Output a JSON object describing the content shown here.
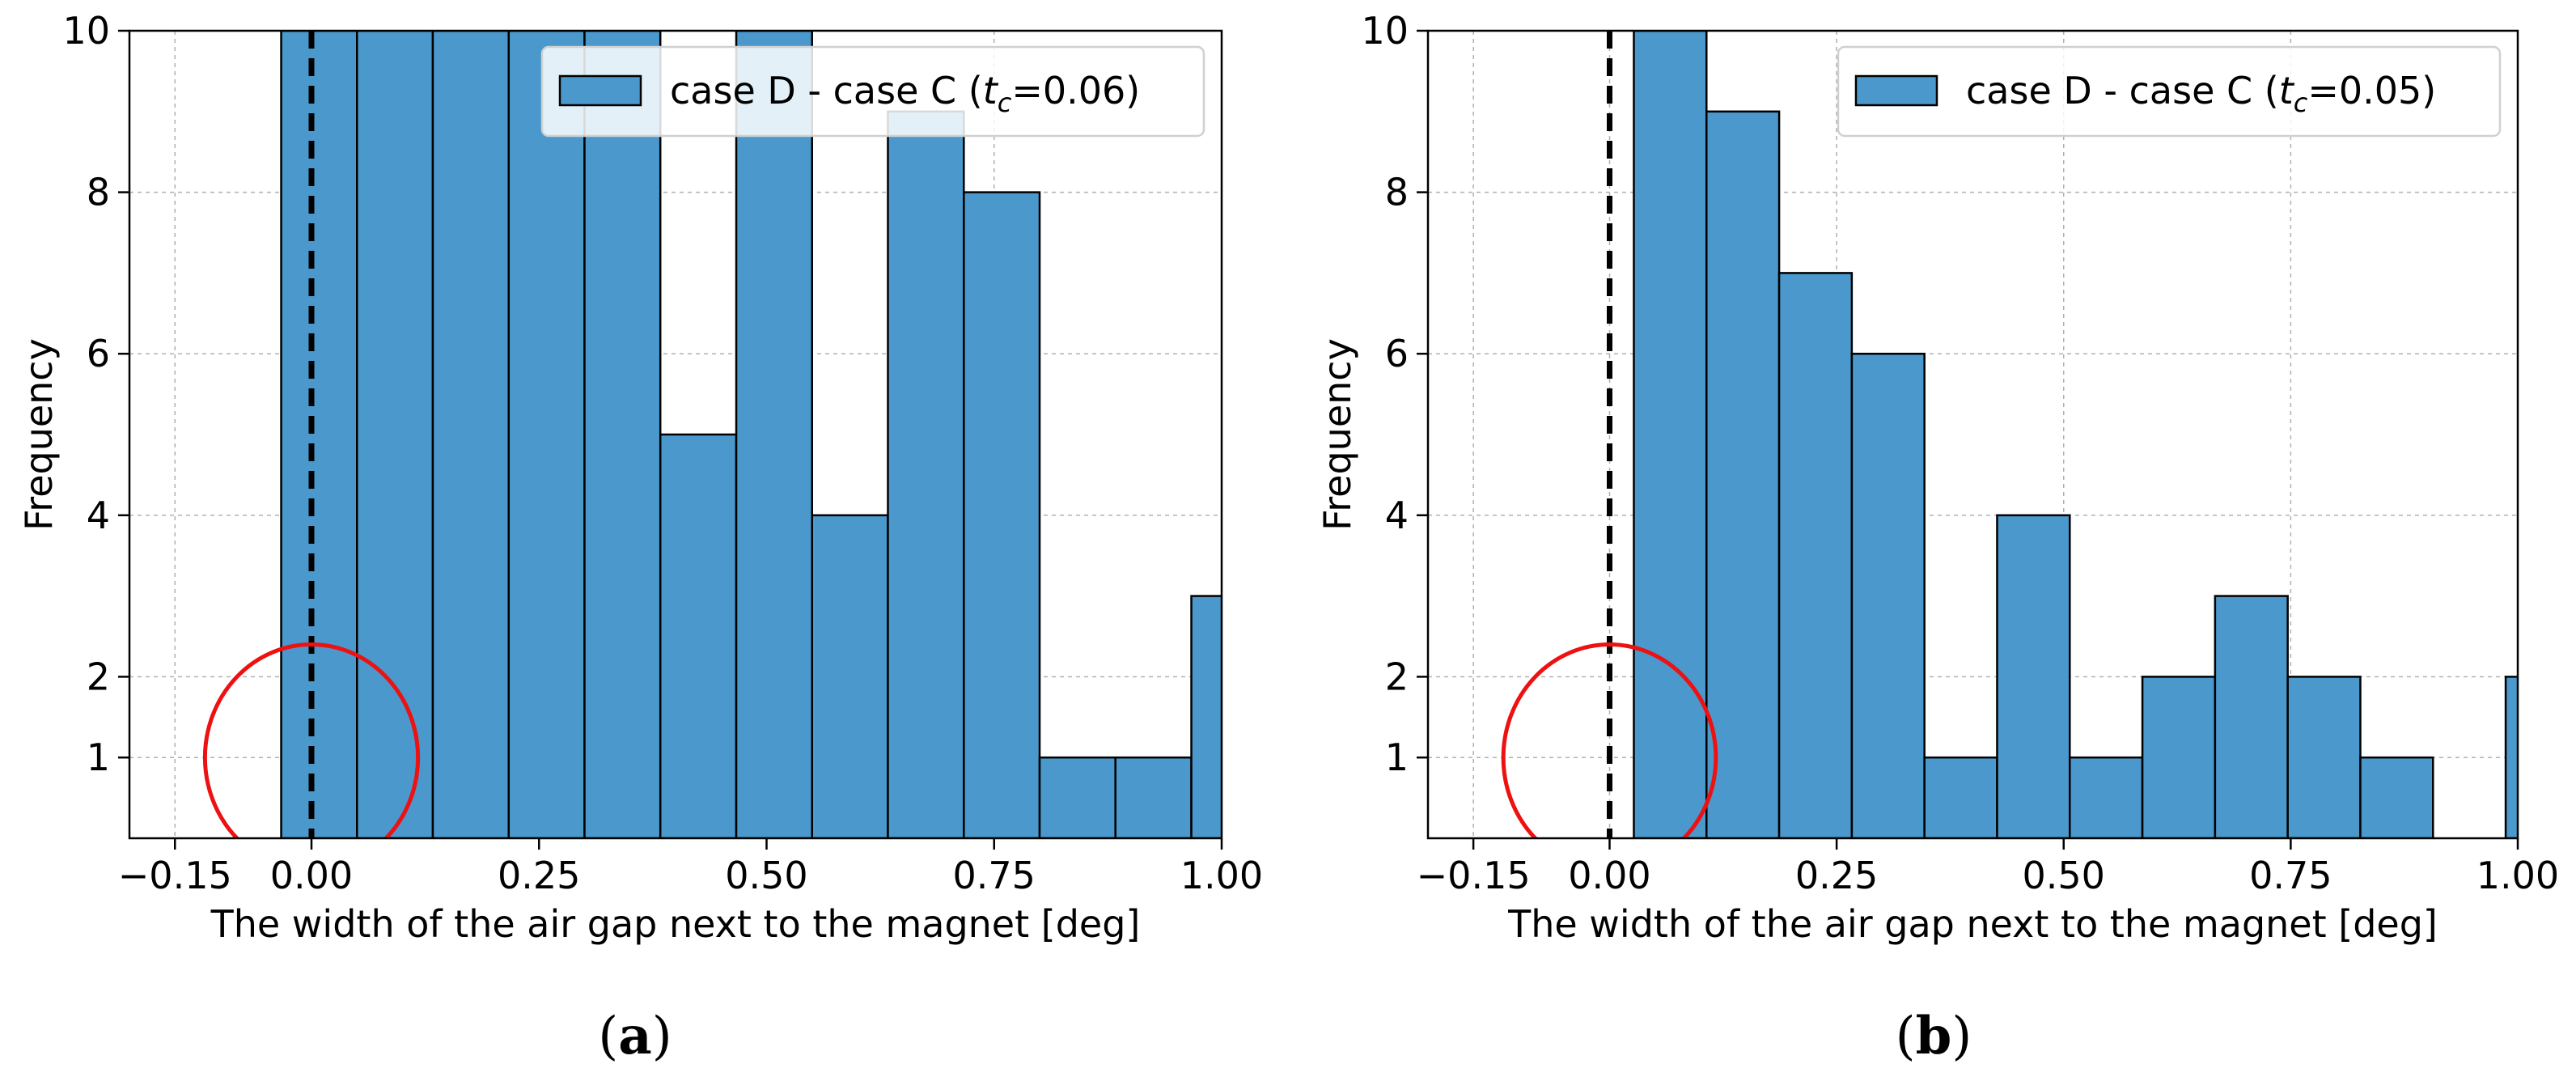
{
  "colors": {
    "bar": "#4a98cc",
    "marker": "#000000",
    "circle": "#ee1111"
  },
  "chart_data": [
    {
      "type": "bar",
      "panel_label": {
        "open": "(",
        "letter": "a",
        "close": ")"
      },
      "xlabel": "The width of the air gap next to the magnet [deg]",
      "ylabel": "Frequency",
      "xlim": [
        -0.2,
        1.0
      ],
      "ylim": [
        0,
        10
      ],
      "grid": true,
      "legend_position": "top-right",
      "legend": {
        "prefix": "case D - case C (",
        "var": "t",
        "sub": "c",
        "suffix": "=0.06)"
      },
      "xticks": [
        -0.15,
        0.0,
        0.25,
        0.5,
        0.75,
        1.0
      ],
      "xtick_labels": [
        "−0.15",
        "0.00",
        "0.25",
        "0.50",
        "0.75",
        "1.00"
      ],
      "yticks": [
        1,
        2,
        4,
        6,
        8,
        10
      ],
      "ytick_labels": [
        "1",
        "2",
        "4",
        "6",
        "8",
        "10"
      ],
      "bin_edges": [
        -0.0333,
        0.05,
        0.1333,
        0.2167,
        0.3,
        0.3833,
        0.4667,
        0.55,
        0.6333,
        0.7167,
        0.8,
        0.8833,
        0.9667,
        1.05
      ],
      "values": [
        10,
        10,
        10,
        10,
        10,
        5,
        10,
        4,
        9,
        8,
        1,
        1,
        3
      ],
      "marker_line_x": 0.0,
      "circle": {
        "cx": 0.0,
        "cy": 1.0,
        "rx": 0.117,
        "ry": 1.4
      }
    },
    {
      "type": "bar",
      "panel_label": {
        "open": "(",
        "letter": "b",
        "close": ")"
      },
      "xlabel": "The width of the air gap next to the magnet [deg]",
      "ylabel": "Frequency",
      "xlim": [
        -0.2,
        1.0
      ],
      "ylim": [
        0,
        10
      ],
      "grid": true,
      "legend_position": "top-right",
      "legend": {
        "prefix": "case D - case C (",
        "var": "t",
        "sub": "c",
        "suffix": "=0.05)"
      },
      "xticks": [
        -0.15,
        0.0,
        0.25,
        0.5,
        0.75,
        1.0
      ],
      "xtick_labels": [
        "−0.15",
        "0.00",
        "0.25",
        "0.50",
        "0.75",
        "1.00"
      ],
      "yticks": [
        1,
        2,
        4,
        6,
        8,
        10
      ],
      "ytick_labels": [
        "1",
        "2",
        "4",
        "6",
        "8",
        "10"
      ],
      "bin_edges": [
        0.0267,
        0.1067,
        0.1867,
        0.2667,
        0.3467,
        0.4267,
        0.5067,
        0.5867,
        0.6667,
        0.7467,
        0.8267,
        0.9067,
        0.9867,
        1.0667
      ],
      "values": [
        10,
        9,
        7,
        6,
        1,
        4,
        1,
        2,
        3,
        2,
        1,
        0,
        2
      ],
      "marker_line_x": 0.0,
      "circle": {
        "cx": 0.0,
        "cy": 1.0,
        "rx": 0.117,
        "ry": 1.4
      }
    }
  ]
}
